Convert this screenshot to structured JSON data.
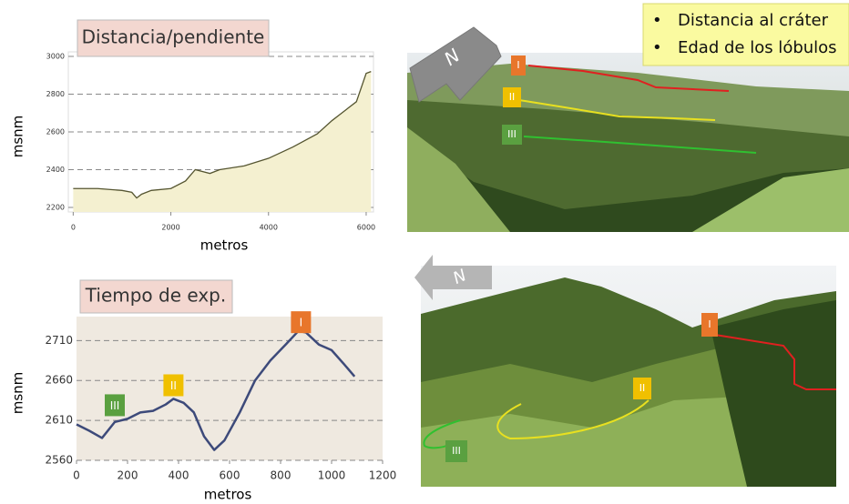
{
  "chart_data": [
    {
      "type": "area",
      "title": "Distancia/pendiente",
      "x_label": "metros",
      "y_label": "msnm",
      "x": [
        0,
        500,
        1000,
        1200,
        1300,
        1400,
        1600,
        2000,
        2300,
        2500,
        2800,
        3000,
        3500,
        4000,
        4500,
        5000,
        5300,
        5600,
        5800,
        6000,
        6100
      ],
      "values": [
        2300,
        2300,
        2290,
        2280,
        2250,
        2270,
        2290,
        2300,
        2340,
        2400,
        2380,
        2400,
        2420,
        2460,
        2520,
        2590,
        2660,
        2720,
        2760,
        2910,
        2920
      ],
      "color": "#555530",
      "fill": "#f4f0d0",
      "xlim": [
        -100,
        6150
      ],
      "ylim": [
        2200,
        3000
      ],
      "xticks": [
        0,
        2000,
        4000,
        6000
      ],
      "yticks": [
        2200,
        2400,
        2600,
        2800,
        3000
      ],
      "grid": true
    },
    {
      "type": "line",
      "title": "Tiempo de exp.",
      "x_label": "metros",
      "y_label": "msnm",
      "x": [
        0,
        50,
        100,
        150,
        200,
        250,
        300,
        350,
        380,
        420,
        460,
        500,
        540,
        580,
        640,
        700,
        760,
        820,
        870,
        900,
        950,
        1000,
        1050,
        1090
      ],
      "values": [
        2605,
        2597,
        2588,
        2608,
        2612,
        2620,
        2622,
        2630,
        2637,
        2632,
        2620,
        2590,
        2573,
        2585,
        2620,
        2660,
        2685,
        2705,
        2722,
        2720,
        2705,
        2698,
        2680,
        2665
      ],
      "color": "#3d4a7a",
      "background": "#efe9e0",
      "xlim": [
        0,
        1200
      ],
      "ylim": [
        2560,
        2740
      ],
      "xticks": [
        0,
        200,
        400,
        600,
        800,
        1000,
        1200
      ],
      "yticks": [
        2560,
        2610,
        2660,
        2710
      ],
      "grid": true,
      "annotations": [
        {
          "label": "I",
          "x": 880,
          "y": 2733,
          "color": "#e8762b"
        },
        {
          "label": "II",
          "x": 380,
          "y": 2654,
          "color": "#f0c000"
        },
        {
          "label": "III",
          "x": 150,
          "y": 2629,
          "color": "#5aa040"
        }
      ]
    }
  ],
  "bullets": [
    "Distancia al cráter",
    "Edad de los lóbulos"
  ],
  "photos": [
    {
      "markers": [
        "I",
        "II",
        "III"
      ],
      "north": "N"
    },
    {
      "markers": [
        "I",
        "II",
        "III"
      ],
      "north": "N"
    }
  ]
}
